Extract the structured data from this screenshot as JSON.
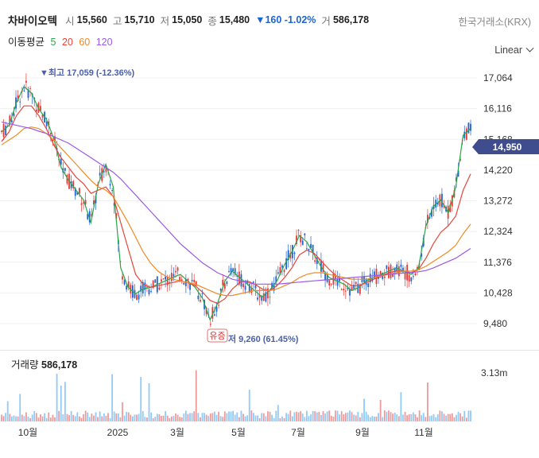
{
  "header": {
    "name": "차바이오텍",
    "open_label": "시",
    "open": "15,560",
    "high_label": "고",
    "high": "15,710",
    "low_label": "저",
    "low": "15,050",
    "close_label": "종",
    "close": "15,480",
    "change": "▼160 -1.02%",
    "volume_label": "거",
    "volume": "586,178"
  },
  "exchange": "한국거래소(KRX)",
  "scale_mode": "Linear",
  "moving_average": {
    "label": "이동평균",
    "periods": [
      {
        "value": "5",
        "color": "#2aa64a"
      },
      {
        "value": "20",
        "color": "#e6453a"
      },
      {
        "value": "60",
        "color": "#f08a25"
      },
      {
        "value": "120",
        "color": "#9b59e8"
      }
    ]
  },
  "volume_header": {
    "label": "거래량",
    "value": "586,178"
  },
  "annotations": {
    "high_marker": "▼최고 17,059 (-12.36%)",
    "low_marker": "저 9,260 (61.45%)",
    "event_badge": "유증"
  },
  "price_tag": "14,950",
  "colors": {
    "up": "#e53935",
    "down": "#1e63d3",
    "accent": "#4a5fa8"
  },
  "chart_data": {
    "type": "line",
    "title": "",
    "y_ticks": [
      "17,064",
      "16,116",
      "15,168",
      "14,220",
      "13,272",
      "12,324",
      "11,376",
      "10,428",
      "9,480"
    ],
    "ylim": [
      9260,
      17400
    ],
    "x_ticks": [
      "10월",
      "2025",
      "3월",
      "5월",
      "7월",
      "9월",
      "11월"
    ],
    "volume_axis_label": "3.13m",
    "series": [
      {
        "name": "5",
        "values": [
          15400,
          15600,
          16300,
          16800,
          16600,
          16100,
          15800,
          15200,
          14300,
          13900,
          13600,
          13300,
          12600,
          13800,
          14400,
          13700,
          11200,
          10600,
          10400,
          10550,
          10600,
          10700,
          10800,
          10900,
          11000,
          10800,
          10600,
          10250,
          9600,
          10100,
          10800,
          11100,
          10900,
          10700,
          10500,
          10300,
          10500,
          10800,
          11300,
          11700,
          12200,
          12000,
          11600,
          11200,
          10900,
          10800,
          10700,
          10500,
          10600,
          10800,
          10900,
          11000,
          11100,
          11200,
          11100,
          11000,
          11200,
          12500,
          13100,
          13300,
          12900,
          13700,
          15300,
          15500
        ]
      },
      {
        "name": "20",
        "values": [
          15100,
          15400,
          15900,
          16200,
          16200,
          15900,
          15500,
          15000,
          14600,
          14300,
          14000,
          13800,
          13500,
          13600,
          13700,
          13400,
          12600,
          11800,
          11000,
          10700,
          10600,
          10650,
          10700,
          10750,
          10800,
          10750,
          10650,
          10450,
          10200,
          10100,
          10250,
          10550,
          10750,
          10800,
          10700,
          10550,
          10500,
          10650,
          10900,
          11200,
          11600,
          11750,
          11650,
          11400,
          11150,
          10950,
          10800,
          10650,
          10650,
          10750,
          10850,
          10950,
          11050,
          11100,
          11100,
          11050,
          11150,
          11500,
          11950,
          12300,
          12500,
          12800,
          13600,
          14100
        ]
      },
      {
        "name": "60",
        "values": [
          15000,
          15150,
          15300,
          15500,
          15550,
          15500,
          15350,
          15150,
          14900,
          14650,
          14400,
          14150,
          13900,
          13700,
          13600,
          13400,
          13000,
          12600,
          12150,
          11700,
          11350,
          11100,
          10950,
          10850,
          10800,
          10750,
          10700,
          10600,
          10500,
          10400,
          10350,
          10350,
          10400,
          10450,
          10500,
          10500,
          10500,
          10550,
          10650,
          10750,
          10900,
          11000,
          11050,
          11050,
          11000,
          10950,
          10900,
          10850,
          10850,
          10850,
          10900,
          10950,
          11000,
          11050,
          11100,
          11100,
          11150,
          11250,
          11400,
          11550,
          11700,
          11900,
          12250,
          12550
        ]
      },
      {
        "name": "120",
        "values": [
          15700,
          15650,
          15600,
          15550,
          15500,
          15420,
          15350,
          15250,
          15150,
          15050,
          14900,
          14750,
          14600,
          14450,
          14300,
          14150,
          13950,
          13700,
          13450,
          13200,
          12950,
          12700,
          12450,
          12200,
          11950,
          11750,
          11550,
          11350,
          11200,
          11050,
          10950,
          10850,
          10800,
          10750,
          10700,
          10700,
          10700,
          10700,
          10720,
          10740,
          10760,
          10780,
          10800,
          10820,
          10840,
          10860,
          10880,
          10900,
          10920,
          10940,
          10960,
          10980,
          11000,
          11020,
          11040,
          11060,
          11080,
          11120,
          11200,
          11300,
          11400,
          11500,
          11650,
          11800
        ]
      }
    ]
  }
}
